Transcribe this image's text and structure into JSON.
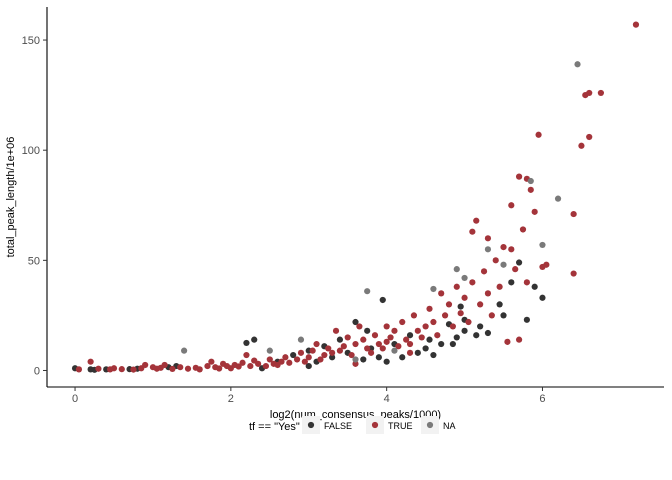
{
  "chart_data": {
    "type": "scatter",
    "xlabel": "log2(num_consensus_peaks/1000)",
    "ylabel": "total_peak_length/1e+06",
    "xlim": [
      -0.36,
      7.56
    ],
    "ylim": [
      -7.5,
      165
    ],
    "x_ticks": [
      0,
      2,
      4,
      6
    ],
    "y_ticks": [
      0,
      50,
      100,
      150
    ],
    "x_tick_labels": [
      "0",
      "2",
      "4",
      "6"
    ],
    "y_tick_labels": [
      "0",
      "50",
      "100",
      "150"
    ],
    "grid": false,
    "legend": {
      "position": "bottom",
      "title": "tf == \"Yes\"",
      "entries": [
        {
          "label": "FALSE",
          "color": "#333333"
        },
        {
          "label": "TRUE",
          "color": "#A4343A"
        },
        {
          "label": "NA",
          "color": "#7A7A7A"
        }
      ]
    },
    "series": [
      {
        "name": "FALSE",
        "color": "#333333",
        "points": [
          [
            0.0,
            1.0
          ],
          [
            0.2,
            0.5
          ],
          [
            0.25,
            0.3
          ],
          [
            0.4,
            0.5
          ],
          [
            0.7,
            0.6
          ],
          [
            0.8,
            0.8
          ],
          [
            1.2,
            1.5
          ],
          [
            1.3,
            2.0
          ],
          [
            2.2,
            12.5
          ],
          [
            2.4,
            1.0
          ],
          [
            2.6,
            4.0
          ],
          [
            2.8,
            7.0
          ],
          [
            3.0,
            2.0
          ],
          [
            3.0,
            9.0
          ],
          [
            3.1,
            4.0
          ],
          [
            3.2,
            11.0
          ],
          [
            3.3,
            6.0
          ],
          [
            3.5,
            8.0
          ],
          [
            3.7,
            5.0
          ],
          [
            3.8,
            10.0
          ],
          [
            3.9,
            6.0
          ],
          [
            4.0,
            4.0
          ],
          [
            4.1,
            12.0
          ],
          [
            4.2,
            6.0
          ],
          [
            4.4,
            8.0
          ],
          [
            4.5,
            10.0
          ],
          [
            4.6,
            7.0
          ],
          [
            4.7,
            12.0
          ],
          [
            4.8,
            21.0
          ],
          [
            4.9,
            15.0
          ],
          [
            5.0,
            18.0
          ],
          [
            5.0,
            23.0
          ],
          [
            5.2,
            20.0
          ],
          [
            5.3,
            17.0
          ],
          [
            5.5,
            25.0
          ],
          [
            5.6,
            40.0
          ],
          [
            5.7,
            49.0
          ],
          [
            5.8,
            23.0
          ],
          [
            5.9,
            38.0
          ],
          [
            6.0,
            33.0
          ],
          [
            3.4,
            14.0
          ],
          [
            3.6,
            22.0
          ],
          [
            3.95,
            32.0
          ],
          [
            4.3,
            16.0
          ],
          [
            4.55,
            14.0
          ],
          [
            4.85,
            12.0
          ],
          [
            2.3,
            14.0
          ],
          [
            3.75,
            18.0
          ],
          [
            4.95,
            29.0
          ],
          [
            5.15,
            16.0
          ],
          [
            5.45,
            30.0
          ]
        ]
      },
      {
        "name": "TRUE",
        "color": "#A4343A",
        "points": [
          [
            0.05,
            0.5
          ],
          [
            0.2,
            4.0
          ],
          [
            0.3,
            0.8
          ],
          [
            0.45,
            0.5
          ],
          [
            0.5,
            1.0
          ],
          [
            0.6,
            0.6
          ],
          [
            0.75,
            0.4
          ],
          [
            0.85,
            1.0
          ],
          [
            0.9,
            2.5
          ],
          [
            1.0,
            1.5
          ],
          [
            1.05,
            0.8
          ],
          [
            1.1,
            1.2
          ],
          [
            1.15,
            2.5
          ],
          [
            1.25,
            0.7
          ],
          [
            1.35,
            1.5
          ],
          [
            1.45,
            0.8
          ],
          [
            1.55,
            1.2
          ],
          [
            1.6,
            0.5
          ],
          [
            1.7,
            2.0
          ],
          [
            1.75,
            4.0
          ],
          [
            1.8,
            1.5
          ],
          [
            1.85,
            0.9
          ],
          [
            1.9,
            3.0
          ],
          [
            1.95,
            2.0
          ],
          [
            2.0,
            1.0
          ],
          [
            2.05,
            2.5
          ],
          [
            2.1,
            1.8
          ],
          [
            2.15,
            3.5
          ],
          [
            2.25,
            2.0
          ],
          [
            2.3,
            4.5
          ],
          [
            2.35,
            3.0
          ],
          [
            2.45,
            2.0
          ],
          [
            2.5,
            5.0
          ],
          [
            2.55,
            3.0
          ],
          [
            2.6,
            2.5
          ],
          [
            2.65,
            4.0
          ],
          [
            2.7,
            6.0
          ],
          [
            2.75,
            3.5
          ],
          [
            2.85,
            5.0
          ],
          [
            2.9,
            8.0
          ],
          [
            2.95,
            4.0
          ],
          [
            3.0,
            6.0
          ],
          [
            3.05,
            9.0
          ],
          [
            3.1,
            12.0
          ],
          [
            3.15,
            5.0
          ],
          [
            3.2,
            7.0
          ],
          [
            3.25,
            10.0
          ],
          [
            3.3,
            8.0
          ],
          [
            3.35,
            18.0
          ],
          [
            3.4,
            9.0
          ],
          [
            3.45,
            11.0
          ],
          [
            3.5,
            15.0
          ],
          [
            3.55,
            7.0
          ],
          [
            3.6,
            12.0
          ],
          [
            3.65,
            20.0
          ],
          [
            3.7,
            14.0
          ],
          [
            3.75,
            10.0
          ],
          [
            3.8,
            8.0
          ],
          [
            3.85,
            16.0
          ],
          [
            3.9,
            12.0
          ],
          [
            3.95,
            10.0
          ],
          [
            4.0,
            13.0
          ],
          [
            4.0,
            20.0
          ],
          [
            4.05,
            15.0
          ],
          [
            4.1,
            18.0
          ],
          [
            4.15,
            11.0
          ],
          [
            4.2,
            22.0
          ],
          [
            4.25,
            14.0
          ],
          [
            4.3,
            12.0
          ],
          [
            4.35,
            25.0
          ],
          [
            4.4,
            18.0
          ],
          [
            4.45,
            15.0
          ],
          [
            4.5,
            20.0
          ],
          [
            4.55,
            28.0
          ],
          [
            4.6,
            22.0
          ],
          [
            4.65,
            16.0
          ],
          [
            4.7,
            35.0
          ],
          [
            4.75,
            25.0
          ],
          [
            4.8,
            30.0
          ],
          [
            4.85,
            20.0
          ],
          [
            4.9,
            38.0
          ],
          [
            4.95,
            26.0
          ],
          [
            5.0,
            33.0
          ],
          [
            5.05,
            22.0
          ],
          [
            5.1,
            40.0
          ],
          [
            5.1,
            63.0
          ],
          [
            5.15,
            68.0
          ],
          [
            5.2,
            30.0
          ],
          [
            5.25,
            45.0
          ],
          [
            5.3,
            35.0
          ],
          [
            5.35,
            25.0
          ],
          [
            5.4,
            50.0
          ],
          [
            5.45,
            38.0
          ],
          [
            5.5,
            56.0
          ],
          [
            5.55,
            13.0
          ],
          [
            5.6,
            55.0
          ],
          [
            5.65,
            46.0
          ],
          [
            5.7,
            14.0
          ],
          [
            5.75,
            64.0
          ],
          [
            5.8,
            40.0
          ],
          [
            5.85,
            82.0
          ],
          [
            5.9,
            72.0
          ],
          [
            5.95,
            107.0
          ],
          [
            6.0,
            47.0
          ],
          [
            6.05,
            48.0
          ],
          [
            6.4,
            71.0
          ],
          [
            6.4,
            44.0
          ],
          [
            6.5,
            102.0
          ],
          [
            6.55,
            125.0
          ],
          [
            6.6,
            106.0
          ],
          [
            6.6,
            126.0
          ],
          [
            6.75,
            126.0
          ],
          [
            7.2,
            157.0
          ],
          [
            5.7,
            88.0
          ],
          [
            5.8,
            87.0
          ],
          [
            5.6,
            75.0
          ],
          [
            5.3,
            60.0
          ],
          [
            4.3,
            8.0
          ],
          [
            3.6,
            3.0
          ],
          [
            2.2,
            7.0
          ]
        ]
      },
      {
        "name": "NA",
        "color": "#7A7A7A",
        "points": [
          [
            1.4,
            9.0
          ],
          [
            2.5,
            9.0
          ],
          [
            2.9,
            14.0
          ],
          [
            3.6,
            5.0
          ],
          [
            3.75,
            36.0
          ],
          [
            4.6,
            37.0
          ],
          [
            4.9,
            46.0
          ],
          [
            5.0,
            42.0
          ],
          [
            5.3,
            55.0
          ],
          [
            5.85,
            86.0
          ],
          [
            6.0,
            57.0
          ],
          [
            6.2,
            78.0
          ],
          [
            6.45,
            139.0
          ],
          [
            4.1,
            9.0
          ],
          [
            5.5,
            48.0
          ]
        ]
      }
    ]
  }
}
